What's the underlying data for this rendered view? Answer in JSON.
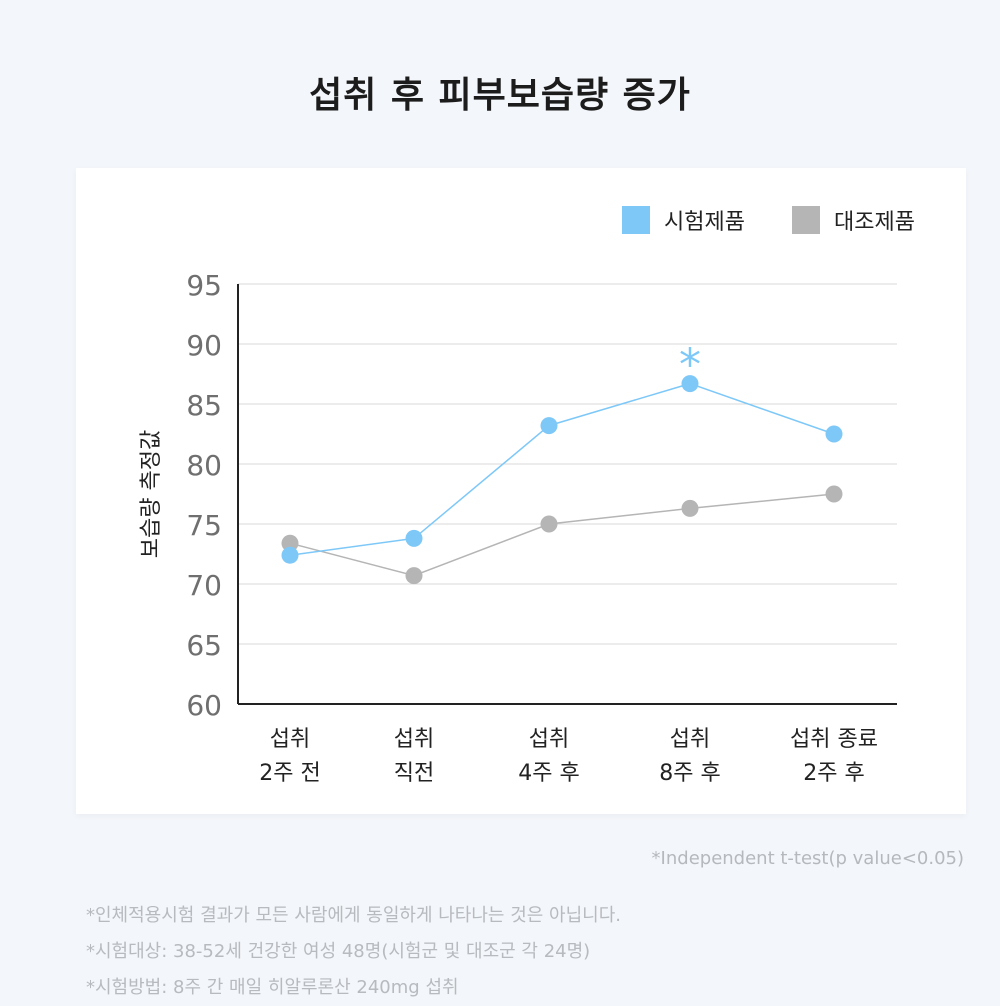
{
  "title": "섭취 후 피부보습량 증가",
  "chart_data": {
    "type": "line",
    "ylabel": "보습량 측정값",
    "ylim": [
      60,
      95
    ],
    "yticks": [
      60,
      65,
      70,
      75,
      80,
      85,
      90,
      95
    ],
    "categories": [
      [
        "섭취",
        "2주 전"
      ],
      [
        "섭취",
        "직전"
      ],
      [
        "섭취",
        "4주 후"
      ],
      [
        "섭취",
        "8주 후"
      ],
      [
        "섭취 종료",
        "2주 후"
      ]
    ],
    "series": [
      {
        "name": "시험제품",
        "color": "#7ec8f8",
        "values": [
          72.4,
          73.8,
          83.2,
          86.7,
          82.5
        ]
      },
      {
        "name": "대조제품",
        "color": "#b5b5b5",
        "values": [
          73.4,
          70.7,
          75.0,
          76.3,
          77.5
        ]
      }
    ],
    "annotations": [
      {
        "text": "*",
        "category_index": 3,
        "series_index": 0,
        "color": "#7ec8f8"
      }
    ],
    "grid": true,
    "legend_position": "top-right"
  },
  "footnote_test": "*Independent t-test(p value<0.05)",
  "notes": [
    "*인체적용시험 결과가 모든 사람에게 동일하게 나타나는 것은 아닙니다.",
    "*시험대상: 38-52세 건강한 여성 48명(시험군 및 대조군 각 24명)",
    "*시험방법: 8주 간 매일 히알루론산 240mg 섭취"
  ]
}
